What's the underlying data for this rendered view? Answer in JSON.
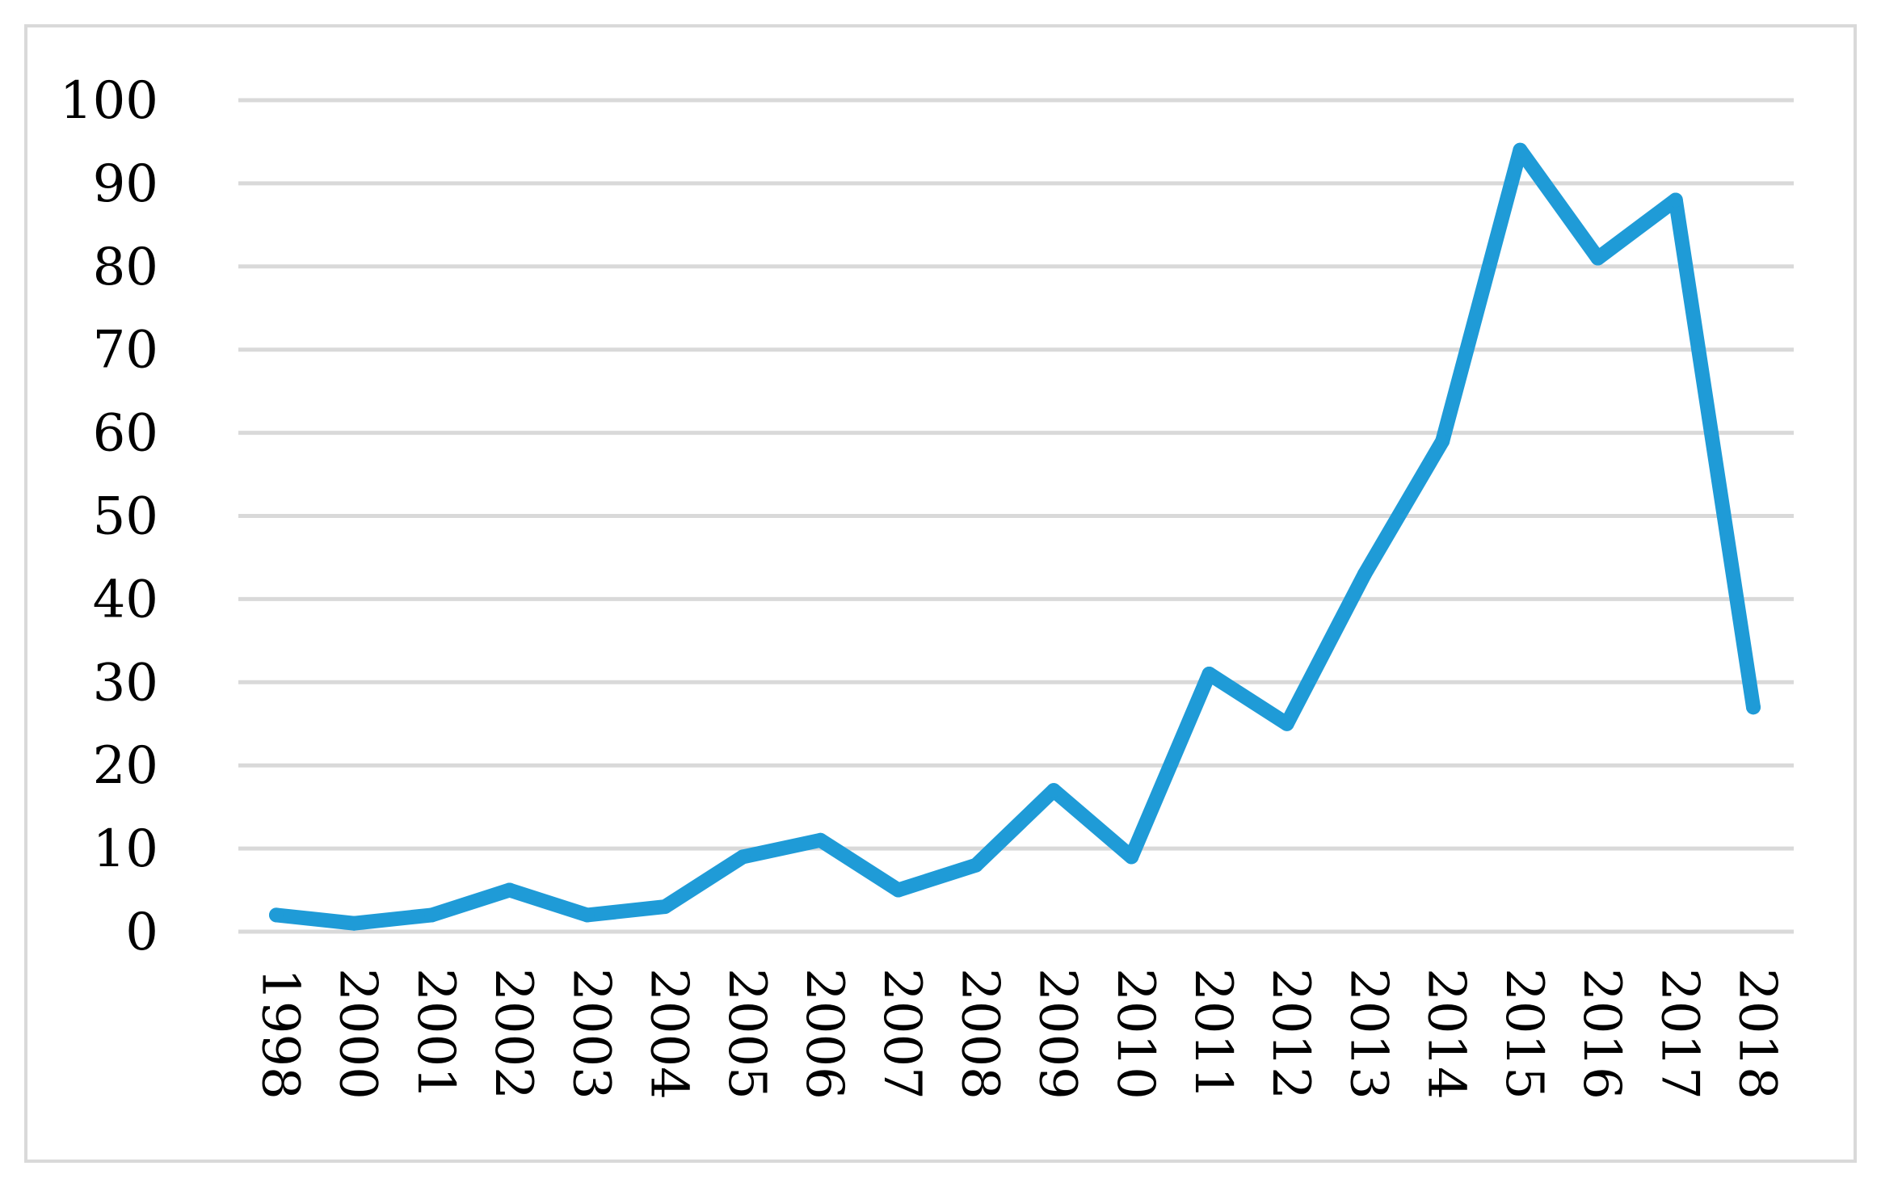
{
  "chart_data": {
    "type": "line",
    "title": "",
    "xlabel": "",
    "ylabel": "",
    "categories": [
      "1998",
      "2000",
      "2001",
      "2002",
      "2003",
      "2004",
      "2005",
      "2006",
      "2007",
      "2008",
      "2009",
      "2010",
      "2011",
      "2012",
      "2013",
      "2014",
      "2015",
      "2016",
      "2017",
      "2018"
    ],
    "series": [
      {
        "values": [
          2,
          1,
          2,
          5,
          2,
          3,
          9,
          11,
          5,
          8,
          17,
          9,
          31,
          25,
          43,
          59,
          94,
          81,
          88,
          27
        ],
        "color": "#1f9bd7"
      }
    ],
    "ylim": [
      0,
      100
    ],
    "yticks": [
      0,
      10,
      20,
      30,
      40,
      50,
      60,
      70,
      80,
      90,
      100
    ],
    "grid": true,
    "legend": "none",
    "x_tick_rotation": "vertical"
  }
}
